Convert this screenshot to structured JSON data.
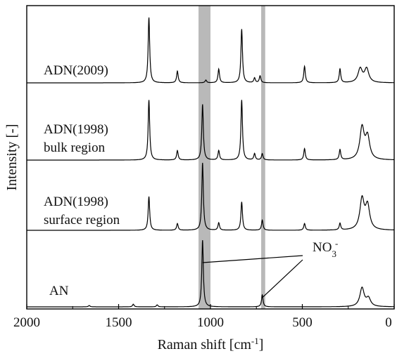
{
  "chart_data": {
    "type": "line",
    "xlabel_main": "Raman shift [cm",
    "xlabel_sup": "-1",
    "xlabel_end": "]",
    "ylabel": "Intensity [-]",
    "xlim": [
      2000,
      0
    ],
    "x_ticks": [
      2000,
      1500,
      1000,
      500,
      0
    ],
    "x_tick_labels": [
      "2000",
      "1500",
      "1000",
      "500",
      "0"
    ],
    "highlight_bands": [
      {
        "from": 1000,
        "to": 1065
      },
      {
        "from": 702,
        "to": 724
      }
    ],
    "band_color": "#b9b9b9",
    "annotation": {
      "text_main": "NO",
      "text_sub": "3",
      "text_sup": "-"
    },
    "series": [
      {
        "name": "ADN(2009)",
        "label_lines": [
          "ADN(2009)"
        ],
        "peaks": [
          [
            1335,
            0.95
          ],
          [
            1180,
            0.17
          ],
          [
            1025,
            0.04
          ],
          [
            955,
            0.2
          ],
          [
            830,
            0.78
          ],
          [
            760,
            0.07
          ],
          [
            730,
            0.1
          ],
          [
            488,
            0.24
          ],
          [
            295,
            0.2
          ],
          [
            185,
            0.2
          ],
          [
            150,
            0.2
          ]
        ]
      },
      {
        "name": "ADN(1998) bulk region",
        "label_lines": [
          "ADN(1998)",
          "bulk region"
        ],
        "peaks": [
          [
            1335,
            0.95
          ],
          [
            1180,
            0.15
          ],
          [
            1043,
            0.88
          ],
          [
            955,
            0.15
          ],
          [
            830,
            0.95
          ],
          [
            760,
            0.1
          ],
          [
            718,
            0.1
          ],
          [
            488,
            0.18
          ],
          [
            295,
            0.16
          ],
          [
            175,
            0.5
          ],
          [
            145,
            0.35
          ]
        ]
      },
      {
        "name": "ADN(1998) surface region",
        "label_lines": [
          "ADN(1998)",
          "surface region"
        ],
        "peaks": [
          [
            1335,
            0.5
          ],
          [
            1180,
            0.1
          ],
          [
            1043,
            1.0
          ],
          [
            955,
            0.11
          ],
          [
            830,
            0.42
          ],
          [
            718,
            0.15
          ],
          [
            488,
            0.1
          ],
          [
            295,
            0.1
          ],
          [
            175,
            0.45
          ],
          [
            145,
            0.35
          ]
        ]
      },
      {
        "name": "AN",
        "label_lines": [
          "AN"
        ],
        "peaks": [
          [
            1660,
            0.02
          ],
          [
            1420,
            0.04
          ],
          [
            1290,
            0.03
          ],
          [
            1043,
            1.0
          ],
          [
            718,
            0.18
          ],
          [
            175,
            0.28
          ],
          [
            140,
            0.12
          ]
        ]
      }
    ]
  }
}
